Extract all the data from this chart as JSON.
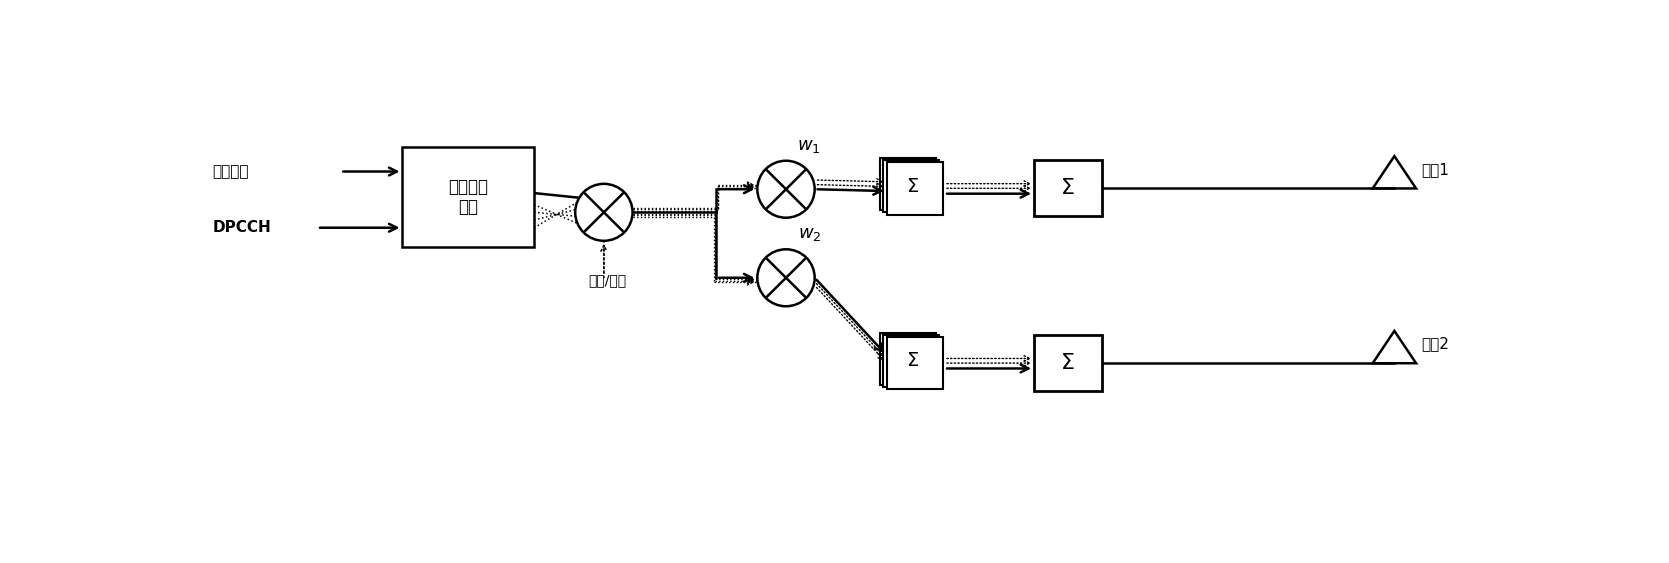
{
  "bg_color": "#ffffff",
  "labels": {
    "shuju": "数据信道",
    "dpcch": "DPCCH",
    "kuopin": "扩频/加扰",
    "chuanshu": "传输信道\n处理",
    "w1": "$w_1$",
    "w2": "$w_2$",
    "sigma": "Σ",
    "tianxian1": "天线1",
    "tianxian2": "天线2"
  },
  "fig_width": 16.69,
  "fig_height": 5.63
}
